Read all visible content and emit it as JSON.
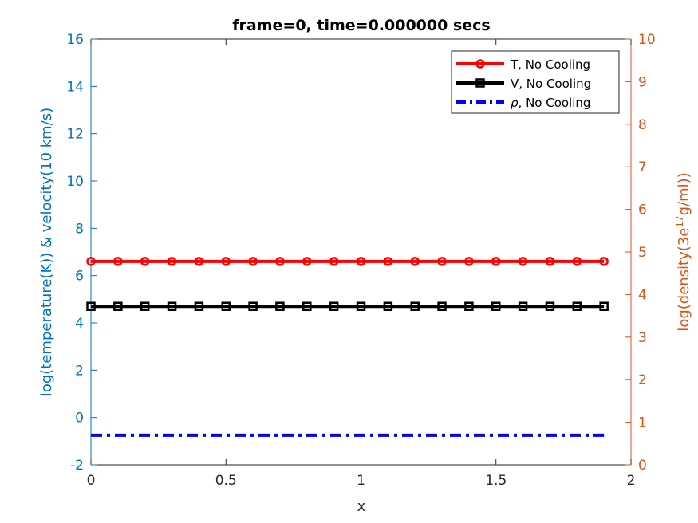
{
  "chart_data": {
    "type": "line",
    "title": "frame=0, time=0.000000 secs",
    "xlabel": "x",
    "ylabel_left": "log(temperature(K)) & velocity(10 km/s)",
    "ylabel_right_parts": {
      "base": "log(density(3e",
      "sup": "17",
      "tail": "g/ml))"
    },
    "xlim": [
      0,
      2
    ],
    "ylim_left": [
      -2,
      16
    ],
    "ylim_right": [
      0,
      10
    ],
    "x_ticks": [
      "0",
      "0.5",
      "1",
      "1.5",
      "2"
    ],
    "y_ticks_left": [
      "-2",
      "0",
      "2",
      "4",
      "6",
      "8",
      "10",
      "12",
      "14",
      "16"
    ],
    "y_ticks_right": [
      "0",
      "1",
      "2",
      "3",
      "4",
      "5",
      "6",
      "7",
      "8",
      "9",
      "10"
    ],
    "x": [
      0,
      0.1,
      0.2,
      0.3,
      0.4,
      0.5,
      0.6,
      0.7,
      0.8,
      0.9,
      1.0,
      1.1,
      1.2,
      1.3,
      1.4,
      1.5,
      1.6,
      1.7,
      1.8,
      1.9
    ],
    "series": [
      {
        "name": "T, No Cooling",
        "axis": "left",
        "color": "#ff0000",
        "marker": "circle",
        "style": "solid",
        "values": [
          6.6,
          6.6,
          6.6,
          6.6,
          6.6,
          6.6,
          6.6,
          6.6,
          6.6,
          6.6,
          6.6,
          6.6,
          6.6,
          6.6,
          6.6,
          6.6,
          6.6,
          6.6,
          6.6,
          6.6
        ]
      },
      {
        "name": "V, No Cooling",
        "axis": "left",
        "color": "#000000",
        "marker": "square",
        "style": "solid",
        "values": [
          4.7,
          4.7,
          4.7,
          4.7,
          4.7,
          4.7,
          4.7,
          4.7,
          4.7,
          4.7,
          4.7,
          4.7,
          4.7,
          4.7,
          4.7,
          4.7,
          4.7,
          4.7,
          4.7,
          4.7
        ]
      },
      {
        "name": "ρ, No Cooling",
        "legend_symbol": "ρ",
        "legend_rest": ", No Cooling",
        "axis": "left",
        "color": "#0000ff",
        "marker": "none",
        "style": "dashdot",
        "values": [
          -0.75,
          -0.75,
          -0.75,
          -0.75,
          -0.75,
          -0.75,
          -0.75,
          -0.75,
          -0.75,
          -0.75,
          -0.75,
          -0.75,
          -0.75,
          -0.75,
          -0.75,
          -0.75,
          -0.75,
          -0.75,
          -0.75,
          -0.75
        ]
      }
    ],
    "legend_position": "top-right",
    "grid": false,
    "colors": {
      "left_axis": "#0072bd",
      "right_axis": "#d95319"
    }
  }
}
